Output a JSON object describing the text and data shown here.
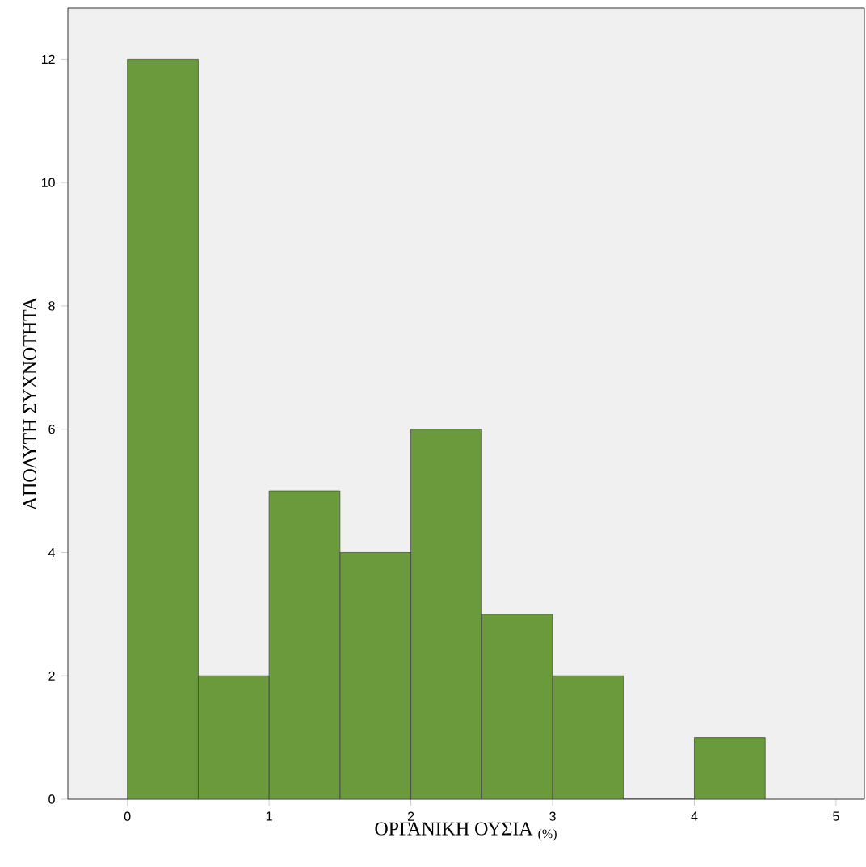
{
  "chart_data": {
    "type": "histogram",
    "xlabel": "ΟΡΓΑΝΙΚΗ ΟΥΣΙΑ $_{(%)}$",
    "ylabel": "ΑΠΟΛΥΤΗ  ΣΥΧΝΟΤΗΤΑ",
    "bins": [
      0,
      0.5,
      1,
      1.5,
      2,
      2.5,
      3,
      3.5,
      4,
      4.5
    ],
    "values": [
      12,
      2,
      5,
      4,
      6,
      3,
      2,
      0,
      1
    ],
    "color": "#6a9a3c",
    "xlim": [
      -0.42,
      5.2
    ],
    "ylim": [
      0,
      12.83
    ],
    "xticks": [
      0,
      1,
      2,
      3,
      4,
      5
    ],
    "yticks": [
      0,
      2,
      4,
      6,
      8,
      10,
      12
    ],
    "grid": false
  }
}
